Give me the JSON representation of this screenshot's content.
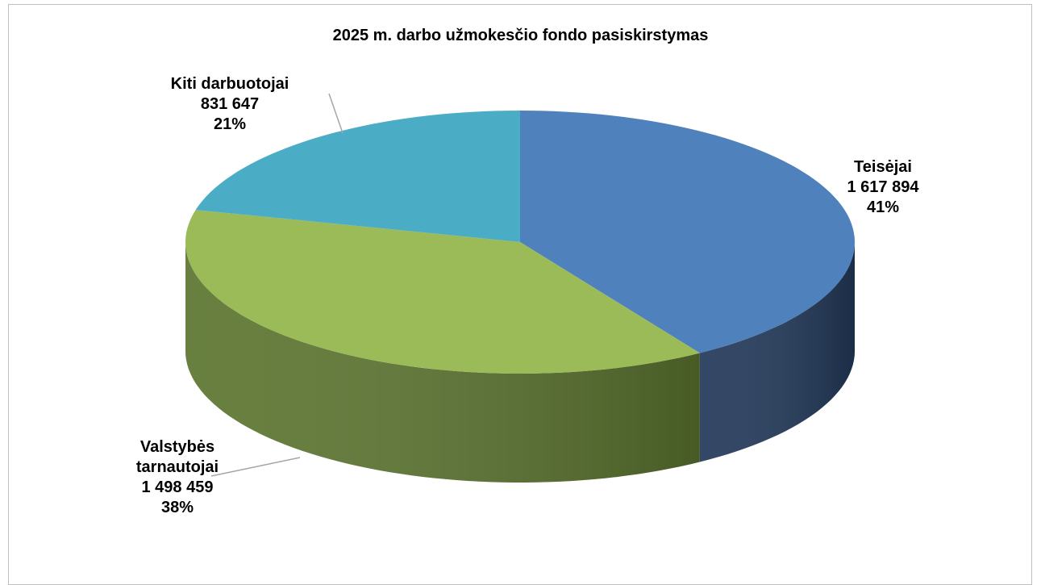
{
  "chart_data": {
    "type": "pie",
    "title": "2025 m. darbo užmokesčio fondo pasiskirstymas",
    "categories": [
      "Teisėjai",
      "Valstybės tarnautojai",
      "Kiti darbuotojai"
    ],
    "values": [
      1617894,
      1498459,
      831647
    ],
    "value_labels": [
      "1 617 894",
      "1 498 459",
      "831 647"
    ],
    "percents": [
      41,
      38,
      21
    ],
    "percent_labels": [
      "41%",
      "38%",
      "21%"
    ],
    "colors": [
      "#4f81bd",
      "#9bbb59",
      "#4bacc6"
    ],
    "side_colors": [
      "#22395a",
      "#5c7530",
      "#2f7f94"
    ]
  }
}
